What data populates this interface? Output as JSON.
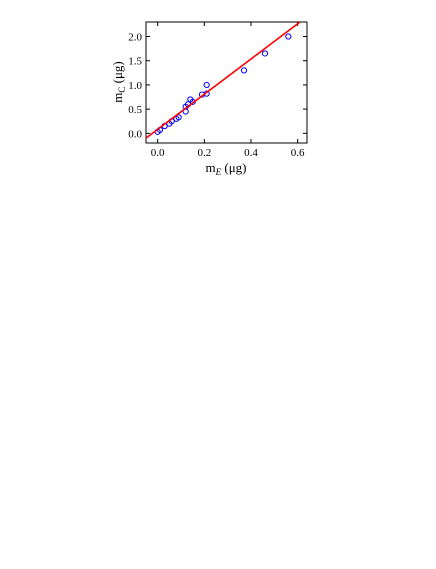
{
  "chart_data": {
    "type": "scatter",
    "xlabel": {
      "base": "m",
      "sub": "E",
      "unit": " (μg)"
    },
    "ylabel": {
      "base": "m",
      "sub": "C",
      "unit": " (μg)"
    },
    "xlim": [
      -0.05,
      0.64
    ],
    "ylim": [
      -0.2,
      2.3
    ],
    "xticks": [
      {
        "value": 0,
        "label": "0.0"
      },
      {
        "value": 0.2,
        "label": "0.2"
      },
      {
        "value": 0.4,
        "label": "0.4"
      },
      {
        "value": 0.6,
        "label": "0.6"
      }
    ],
    "yticks": [
      {
        "value": 0,
        "label": "0.0"
      },
      {
        "value": 0.5,
        "label": "0.5"
      },
      {
        "value": 1,
        "label": "1.0"
      },
      {
        "value": 1.5,
        "label": "1.5"
      },
      {
        "value": 2,
        "label": "2.0"
      }
    ],
    "series": [
      {
        "type": "scatter",
        "color": "#0000ff",
        "x": [
          0.0,
          0.01,
          0.03,
          0.05,
          0.06,
          0.08,
          0.09,
          0.12,
          0.12,
          0.13,
          0.14,
          0.15,
          0.19,
          0.21,
          0.21,
          0.37,
          0.46,
          0.56
        ],
        "values": [
          0.03,
          0.07,
          0.15,
          0.2,
          0.25,
          0.3,
          0.33,
          0.45,
          0.55,
          0.6,
          0.7,
          0.65,
          0.8,
          0.82,
          1.0,
          1.3,
          1.65,
          2.0
        ]
      },
      {
        "type": "line",
        "color": "#ff0000",
        "x": [
          -0.05,
          0.61
        ],
        "values": [
          -0.1,
          2.3
        ]
      }
    ]
  }
}
